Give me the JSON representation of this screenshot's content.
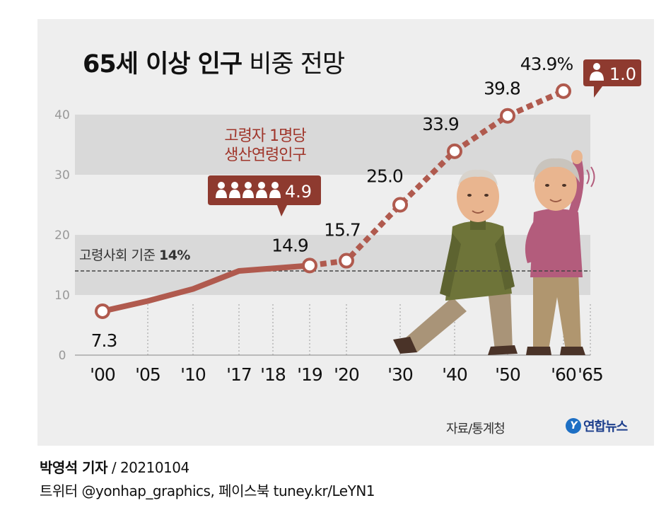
{
  "title": {
    "bold": "65세 이상 인구",
    "light": "비중 전망"
  },
  "source": "자료/통계청",
  "brand": {
    "mark": "Y",
    "name": "연합뉴스"
  },
  "credit": {
    "name": "박영석 기자",
    "separator": "/",
    "date": "20210104"
  },
  "social": "트위터 @yonhap_graphics, 페이스북 tuney.kr/LeYN1",
  "colors": {
    "line": "#b05a4e",
    "bubble": "#8e3a2f",
    "band": "#d9d9d9",
    "panel": "#eeeeee",
    "label_red": "#a0362b"
  },
  "annotations": {
    "threshold_label": "고령사회 기준",
    "threshold_value": "14%",
    "support_label_line1": "고령자 1명당",
    "support_label_line2": "생산연령인구",
    "support_value_2019": "4.9",
    "support_value_2060": "1.0"
  },
  "chart_data": {
    "type": "line",
    "title": "65세 이상 인구 비중 전망",
    "x": [
      2000,
      2005,
      2010,
      2017,
      2018,
      2019,
      2020,
      2030,
      2040,
      2050,
      2060,
      2065
    ],
    "x_tick_labels": [
      "'00",
      "'05",
      "'10",
      "'17",
      "'18",
      "'19",
      "'20",
      "'30",
      "'40",
      "'50",
      "'60",
      "'65"
    ],
    "series": [
      {
        "style": "solid",
        "x": [
          2000,
          2005,
          2010,
          2017,
          2019
        ],
        "values": [
          7.3,
          9.0,
          11.0,
          14.0,
          14.9
        ]
      },
      {
        "style": "dashed",
        "x": [
          2019,
          2020,
          2030,
          2040,
          2050,
          2060
        ],
        "values": [
          14.9,
          15.7,
          25.0,
          33.9,
          39.8,
          43.9
        ]
      }
    ],
    "point_labels": [
      {
        "x": 2000,
        "y": 7.3,
        "text": "7.3"
      },
      {
        "x": 2019,
        "y": 14.9,
        "text": "14.9"
      },
      {
        "x": 2020,
        "y": 15.7,
        "text": "15.7"
      },
      {
        "x": 2030,
        "y": 25.0,
        "text": "25.0"
      },
      {
        "x": 2040,
        "y": 33.9,
        "text": "33.9"
      },
      {
        "x": 2050,
        "y": 39.8,
        "text": "39.8"
      },
      {
        "x": 2060,
        "y": 43.9,
        "text": "43.9%"
      }
    ],
    "marked_points": [
      2000,
      2019,
      2020,
      2030,
      2040,
      2050,
      2060
    ],
    "y_ticks": [
      0,
      10,
      20,
      30,
      40
    ],
    "ylim": [
      0,
      40
    ],
    "threshold": 14,
    "bands": [
      [
        10,
        20
      ],
      [
        30,
        40
      ]
    ],
    "grid": false
  }
}
